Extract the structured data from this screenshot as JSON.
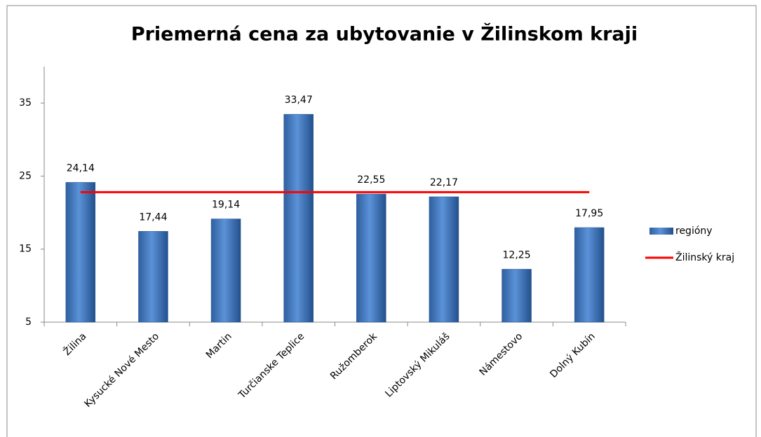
{
  "chart_data": {
    "type": "bar",
    "title": "Priemerná cena za ubytovanie v Žilinskom kraji",
    "categories": [
      "Žilina",
      "Kysucké Nové Mesto",
      "Martin",
      "Turčianske Teplice",
      "Ružomberok",
      "Liptovský Mikuláš",
      "Námestovo",
      "Dolný Kubín"
    ],
    "series": [
      {
        "name": "regióny",
        "type": "bar",
        "color": "#4a7ebb",
        "values": [
          24.14,
          17.44,
          19.14,
          33.47,
          22.55,
          22.17,
          12.25,
          17.95
        ],
        "value_labels": [
          "24,14",
          "17,44",
          "19,14",
          "33,47",
          "22,55",
          "22,17",
          "12,25",
          "17,95"
        ]
      },
      {
        "name": "Žilinský kraj",
        "type": "line",
        "color": "#ff0000",
        "values": [
          22.8,
          22.8,
          22.8,
          22.8,
          22.8,
          22.8,
          22.8,
          22.8
        ]
      }
    ],
    "ylim": [
      5,
      40
    ],
    "yticks": [
      5,
      15,
      25,
      35
    ],
    "grid": false,
    "legend": "right"
  }
}
